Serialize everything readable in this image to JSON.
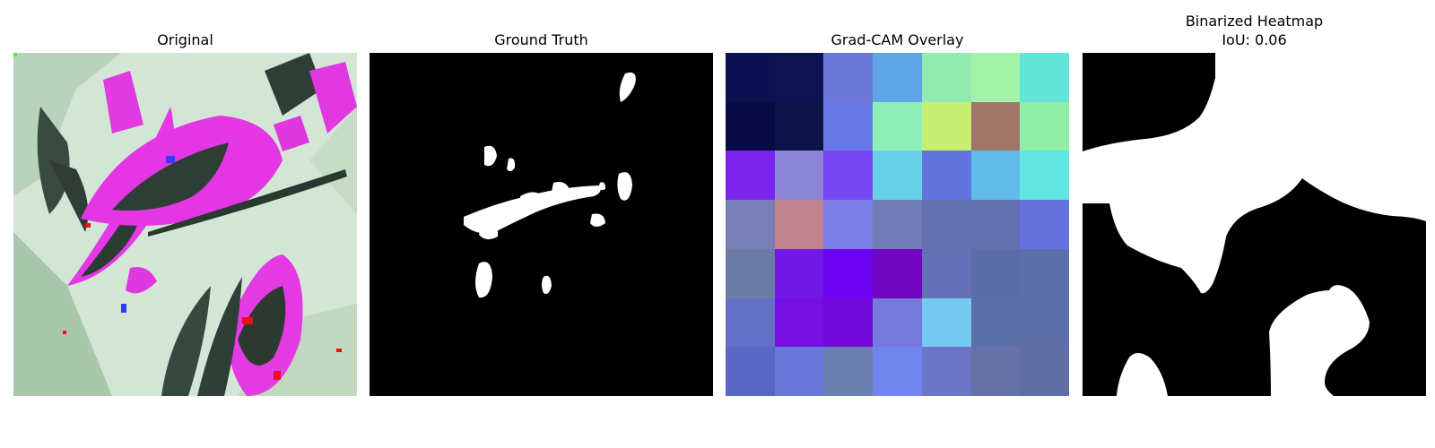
{
  "panels": [
    {
      "title": "Original"
    },
    {
      "title": "Ground Truth"
    },
    {
      "title": "Grad-CAM Overlay"
    },
    {
      "title": "Binarized Heatmap",
      "subtitle": "IoU: 0.06"
    }
  ],
  "gradcam_cells": [
    [
      "#0b1150",
      "#0c1350",
      "#6b78d6",
      "#5fa6e8",
      "#93eab0",
      "#a2f2aa",
      "#64e4d8"
    ],
    [
      "#080a45",
      "#0b1348",
      "#6878e6",
      "#8ef0b8",
      "#c8ef72",
      "#a0766a",
      "#8fefa6"
    ],
    [
      "#7a24ee",
      "#8b86d6",
      "#7646f0",
      "#69d0ea",
      "#6474de",
      "#60bbe8",
      "#60e6de"
    ],
    [
      "#7a7eb6",
      "#c08490",
      "#7c7ee6",
      "#727cb6",
      "#6270ae",
      "#6270ae",
      "#6472de"
    ],
    [
      "#6c7ca6",
      "#7118e6",
      "#6c04f2",
      "#7006c0",
      "#6470b6",
      "#5a6ea6",
      "#5e6ea8"
    ],
    [
      "#6470c6",
      "#7410e2",
      "#7208dc",
      "#7678da",
      "#74caf0",
      "#5a6ea8",
      "#5e6ea6"
    ],
    [
      "#5a66c6",
      "#6a76da",
      "#6c80b0",
      "#7086ee",
      "#6c76c6",
      "#6672a6",
      "#606ea6"
    ]
  ],
  "colors": {
    "mask_fg": "#ffffff",
    "mask_bg": "#000000"
  }
}
